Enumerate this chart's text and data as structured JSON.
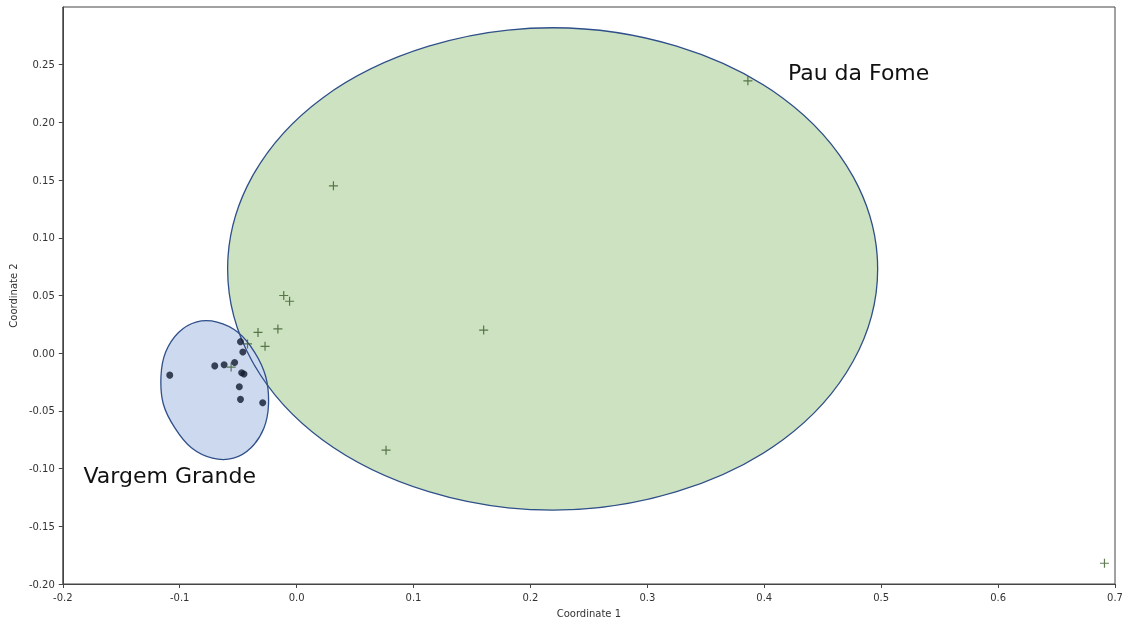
{
  "chart_data": {
    "type": "scatter",
    "xlabel": "Coordinate 1",
    "ylabel": "Coordinate 2",
    "xlim": [
      -0.2,
      0.7
    ],
    "xticks": [
      {
        "value": -0.2,
        "label": "-0.2"
      },
      {
        "value": -0.1,
        "label": "-0.1"
      },
      {
        "value": 0,
        "label": "0.0"
      },
      {
        "value": 0.1,
        "label": "0.1"
      },
      {
        "value": 0.2,
        "label": "0.2"
      },
      {
        "value": 0.3,
        "label": "0.3"
      },
      {
        "value": 0.4,
        "label": "0.4"
      },
      {
        "value": 0.5,
        "label": "0.5"
      },
      {
        "value": 0.6,
        "label": "0.6"
      },
      {
        "value": 0.7,
        "label": "0.7"
      }
    ],
    "ylim": [
      -0.2,
      0.3
    ],
    "yticks": [
      {
        "value": -0.2,
        "label": "-0.20"
      },
      {
        "value": -0.15,
        "label": "-0.15"
      },
      {
        "value": -0.1,
        "label": "-0.10"
      },
      {
        "value": -0.05,
        "label": "-0.05"
      },
      {
        "value": 0,
        "label": "0.00"
      },
      {
        "value": 0.05,
        "label": "0.05"
      },
      {
        "value": 0.1,
        "label": "0.10"
      },
      {
        "value": 0.15,
        "label": "0.15"
      },
      {
        "value": 0.2,
        "label": "0.20"
      },
      {
        "value": 0.25,
        "label": "0.25"
      }
    ],
    "grid": false,
    "legend": false,
    "series": [
      {
        "type": "area",
        "color": "#cde2c0",
        "x": [
          0.497,
          0.476,
          0.416,
          0.325,
          0.219,
          0.113,
          0.022,
          -0.038,
          -0.059,
          -0.038,
          0.022,
          0.113,
          0.219,
          0.325,
          0.416,
          0.476
        ],
        "values": [
          0.073,
          0.153,
          0.221,
          0.266,
          0.282,
          0.266,
          0.221,
          0.153,
          0.073,
          -0.007,
          -0.075,
          -0.12,
          -0.136,
          -0.12,
          -0.075,
          -0.007
        ]
      },
      {
        "type": "area",
        "color": "#cdd9ee",
        "x": [
          -0.0265,
          -0.036,
          -0.05,
          -0.068,
          -0.086,
          -0.101,
          -0.112,
          -0.116,
          -0.114,
          -0.104,
          -0.09,
          -0.072,
          -0.054,
          -0.039,
          -0.028,
          -0.024
        ],
        "values": [
          -0.02,
          0.001,
          0.018,
          0.027,
          0.027,
          0.018,
          0.001,
          -0.02,
          -0.044,
          -0.065,
          -0.082,
          -0.091,
          -0.091,
          -0.082,
          -0.065,
          -0.044
        ]
      },
      {
        "name": "Pau da Fome",
        "marker": "cross",
        "color": "#3a5a2a",
        "x": [
          -0.011,
          -0.006,
          -0.033,
          -0.016,
          -0.042,
          -0.027,
          0.0315,
          0.16,
          0.0765,
          0.386,
          0.691,
          -0.056
        ],
        "values": [
          0.05,
          0.045,
          0.018,
          0.021,
          0.008,
          0.006,
          0.145,
          0.02,
          -0.084,
          0.236,
          -0.182,
          -0.012
        ]
      },
      {
        "name": "Vargem Grande",
        "marker": "circle",
        "color": "#111a2e",
        "x": [
          -0.1085,
          -0.07,
          -0.062,
          -0.053,
          -0.048,
          -0.046,
          -0.047,
          -0.045,
          -0.049,
          -0.048,
          -0.029
        ],
        "values": [
          -0.019,
          -0.011,
          -0.01,
          -0.008,
          0.01,
          0.001,
          -0.017,
          -0.018,
          -0.029,
          -0.04,
          -0.043
        ]
      }
    ]
  }
}
